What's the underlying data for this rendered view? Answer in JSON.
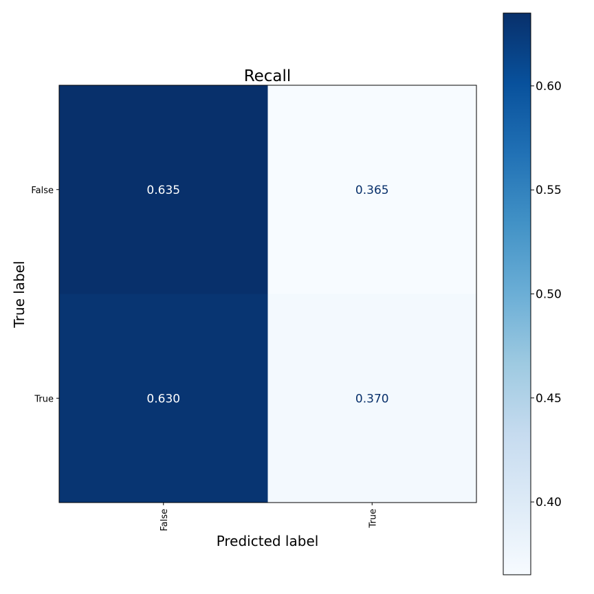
{
  "chart_data": {
    "type": "heatmap",
    "title": "Recall",
    "xlabel": "Predicted label",
    "ylabel": "True label",
    "x_categories": [
      "False",
      "True"
    ],
    "y_categories": [
      "False",
      "True"
    ],
    "values": [
      [
        0.635,
        0.365
      ],
      [
        0.63,
        0.37
      ]
    ],
    "cell_labels": [
      [
        "0.635",
        "0.365"
      ],
      [
        "0.630",
        "0.370"
      ]
    ],
    "colormap": "Blues",
    "colorbar": {
      "range": [
        0.365,
        0.635
      ],
      "ticks": [
        0.4,
        0.45,
        0.5,
        0.55,
        0.6
      ],
      "tick_labels": [
        "0.40",
        "0.45",
        "0.50",
        "0.55",
        "0.60"
      ]
    },
    "colors": {
      "dark_text": "#08306b",
      "light_text": "#ffffff",
      "axis": "#000000"
    }
  }
}
